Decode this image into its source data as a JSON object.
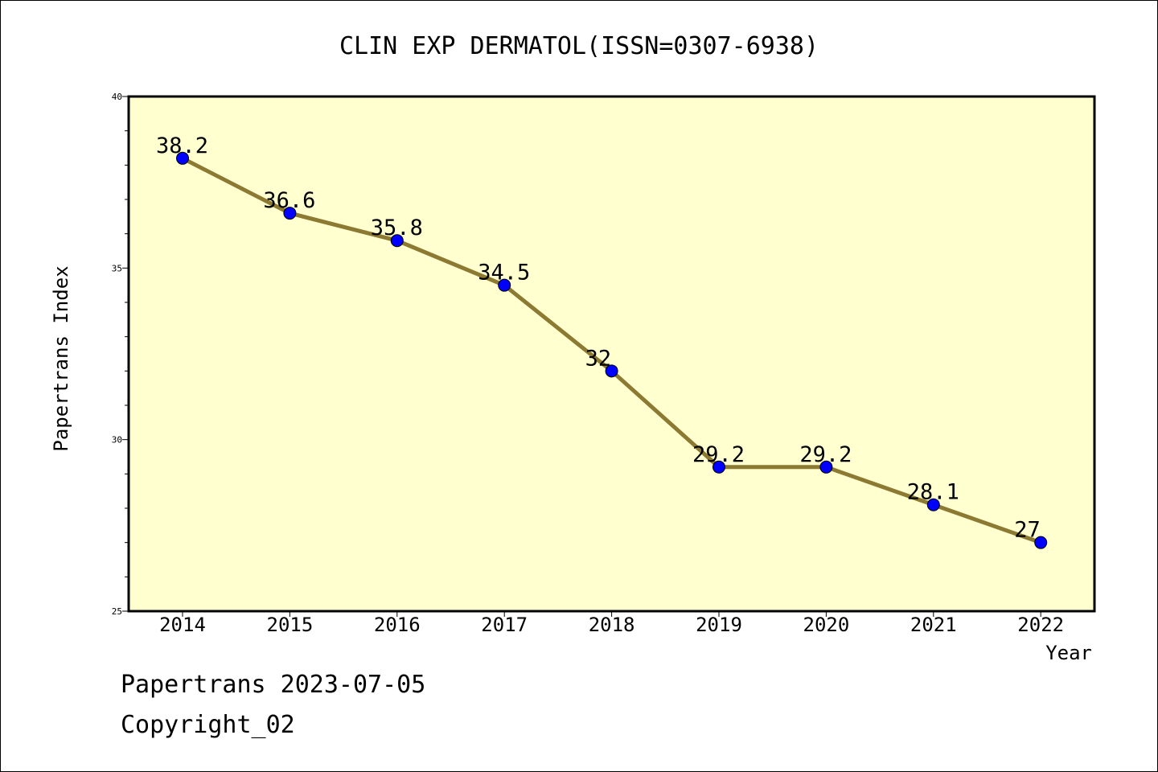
{
  "chart_data": {
    "type": "line",
    "title": "CLIN EXP DERMATOL(ISSN=0307-6938)",
    "xlabel": "Year",
    "ylabel": "Papertrans Index",
    "categories": [
      "2014",
      "2015",
      "2016",
      "2017",
      "2018",
      "2019",
      "2020",
      "2021",
      "2022"
    ],
    "series": [
      {
        "values": [
          38.2,
          36.6,
          35.8,
          34.5,
          32,
          29.2,
          29.2,
          28.1,
          27
        ],
        "labels": [
          "38.2",
          "36.6",
          "35.8",
          "34.5",
          "32",
          "29.2",
          "29.2",
          "28.1",
          "27"
        ]
      }
    ],
    "ylim": [
      25,
      40
    ],
    "yticks": [
      25,
      30,
      35,
      40
    ],
    "ytick_labels": [
      "25",
      "30",
      "35",
      "40"
    ],
    "grid": false,
    "colors": {
      "plot_background": "#ffffd0",
      "line": "#8c7a32",
      "marker": "#0000ff"
    }
  },
  "footer": {
    "line1": "Papertrans 2023-07-05",
    "line2": "Copyright_02"
  }
}
